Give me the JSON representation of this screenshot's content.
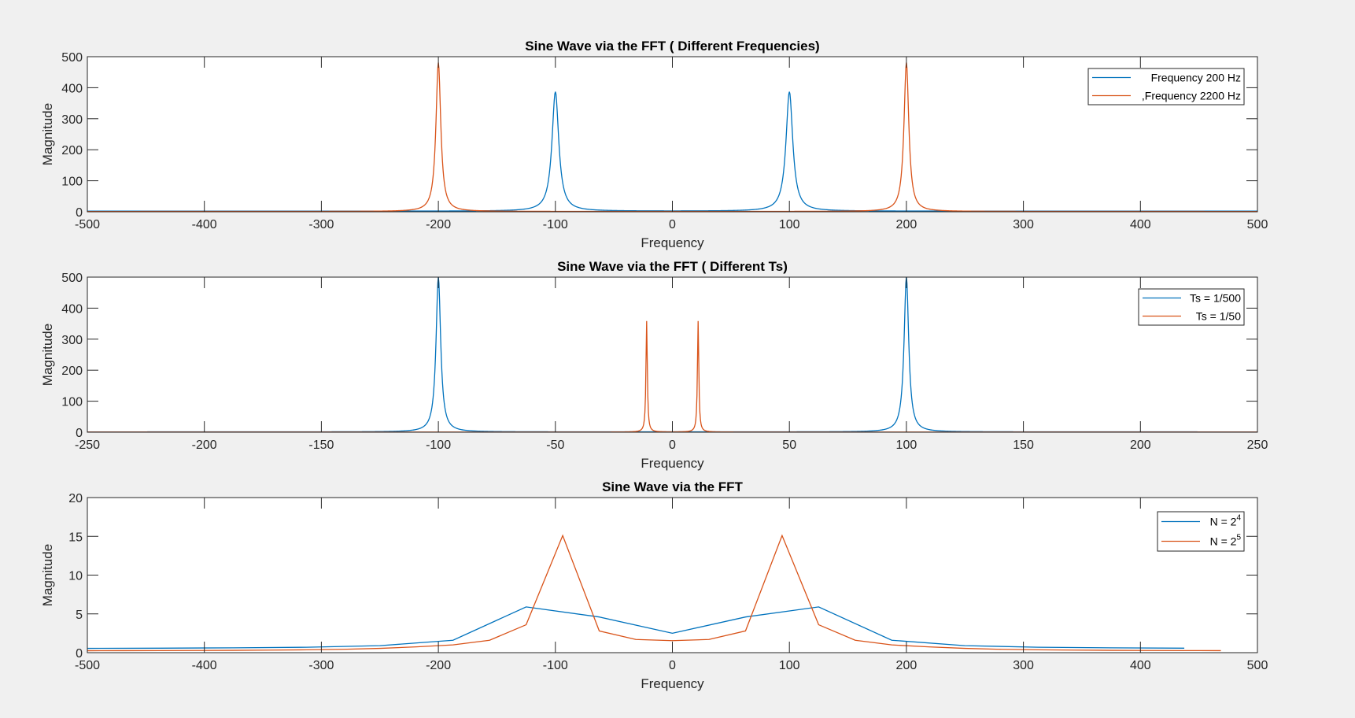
{
  "colors": {
    "series1": "#0072BD",
    "series2": "#D95319",
    "axis": "#262626",
    "figure_bg": "#f0f0f0",
    "plot_bg": "#ffffff"
  },
  "chart_data": [
    {
      "type": "line",
      "title": "Sine Wave via the FFT ( Different Frequencies)",
      "xlabel": "Frequency",
      "ylabel": "Magnitude",
      "xlim": [
        -500,
        500
      ],
      "ylim": [
        0,
        500
      ],
      "xticks": [
        -500,
        -400,
        -300,
        -200,
        -100,
        0,
        100,
        200,
        300,
        400,
        500
      ],
      "yticks": [
        0,
        100,
        200,
        300,
        400,
        500
      ],
      "grid": false,
      "legend_position": "top-right",
      "series": [
        {
          "name": "Frequency 200 Hz",
          "peaks": [
            [
              -100,
              385
            ],
            [
              100,
              385
            ]
          ],
          "width": 3.5,
          "floor": 2
        },
        {
          "name": ",Frequency 2200 Hz",
          "peaks": [
            [
              -200,
              480
            ],
            [
              200,
              480
            ]
          ],
          "width": 2.5,
          "floor": 1
        }
      ]
    },
    {
      "type": "line",
      "title": "Sine Wave via the FFT ( Different Ts)",
      "xlabel": "Frequency",
      "ylabel": "Magnitude",
      "xlim": [
        -250,
        250
      ],
      "ylim": [
        0,
        500
      ],
      "xticks": [
        -250,
        -200,
        -150,
        -100,
        -50,
        0,
        50,
        100,
        150,
        200,
        250
      ],
      "yticks": [
        0,
        100,
        200,
        300,
        400,
        500
      ],
      "grid": false,
      "legend_position": "top-right",
      "series": [
        {
          "name": "Ts = 1/500",
          "peaks": [
            [
              -100,
              500
            ],
            [
              100,
              500
            ]
          ],
          "width": 1.2,
          "floor": 1
        },
        {
          "name": "Ts = 1/50",
          "peaks": [
            [
              -11,
              358
            ],
            [
              11,
              358
            ]
          ],
          "width": 0.35,
          "floor": 0.5
        }
      ]
    },
    {
      "type": "line",
      "title": "Sine Wave via the FFT",
      "xlabel": "Frequency",
      "ylabel": "Magnitude",
      "xlim": [
        -500,
        500
      ],
      "ylim": [
        0,
        20
      ],
      "xticks": [
        -500,
        -400,
        -300,
        -200,
        -100,
        0,
        100,
        200,
        300,
        400,
        500
      ],
      "yticks": [
        0,
        5,
        10,
        15,
        20
      ],
      "grid": false,
      "legend_position": "top-right",
      "series": [
        {
          "name": "N = 2",
          "name_sup": "4",
          "x": [
            -500,
            -437.5,
            -375,
            -312.5,
            -250,
            -187.5,
            -125,
            -62.5,
            0,
            62.5,
            125,
            187.5,
            250,
            312.5,
            375,
            437.5
          ],
          "y": [
            0.55,
            0.58,
            0.62,
            0.7,
            0.9,
            1.6,
            5.9,
            4.6,
            2.5,
            4.6,
            5.9,
            1.6,
            0.9,
            0.7,
            0.62,
            0.58
          ]
        },
        {
          "name": "N = 2",
          "name_sup": "5",
          "x": [
            -500,
            -468.75,
            -437.5,
            -406.25,
            -375,
            -343.75,
            -312.5,
            -281.25,
            -250,
            -218.75,
            -187.5,
            -156.25,
            -125,
            -93.75,
            -62.5,
            -31.25,
            0,
            31.25,
            62.5,
            93.75,
            125,
            156.25,
            187.5,
            218.75,
            250,
            281.25,
            312.5,
            343.75,
            375,
            406.25,
            437.5,
            468.75
          ],
          "y": [
            0.25,
            0.26,
            0.27,
            0.28,
            0.3,
            0.33,
            0.37,
            0.43,
            0.55,
            0.75,
            1.0,
            1.6,
            3.6,
            15.1,
            2.8,
            1.7,
            1.55,
            1.7,
            2.8,
            15.1,
            3.6,
            1.6,
            1.0,
            0.75,
            0.55,
            0.43,
            0.37,
            0.33,
            0.3,
            0.28,
            0.27,
            0.26
          ]
        }
      ]
    }
  ]
}
